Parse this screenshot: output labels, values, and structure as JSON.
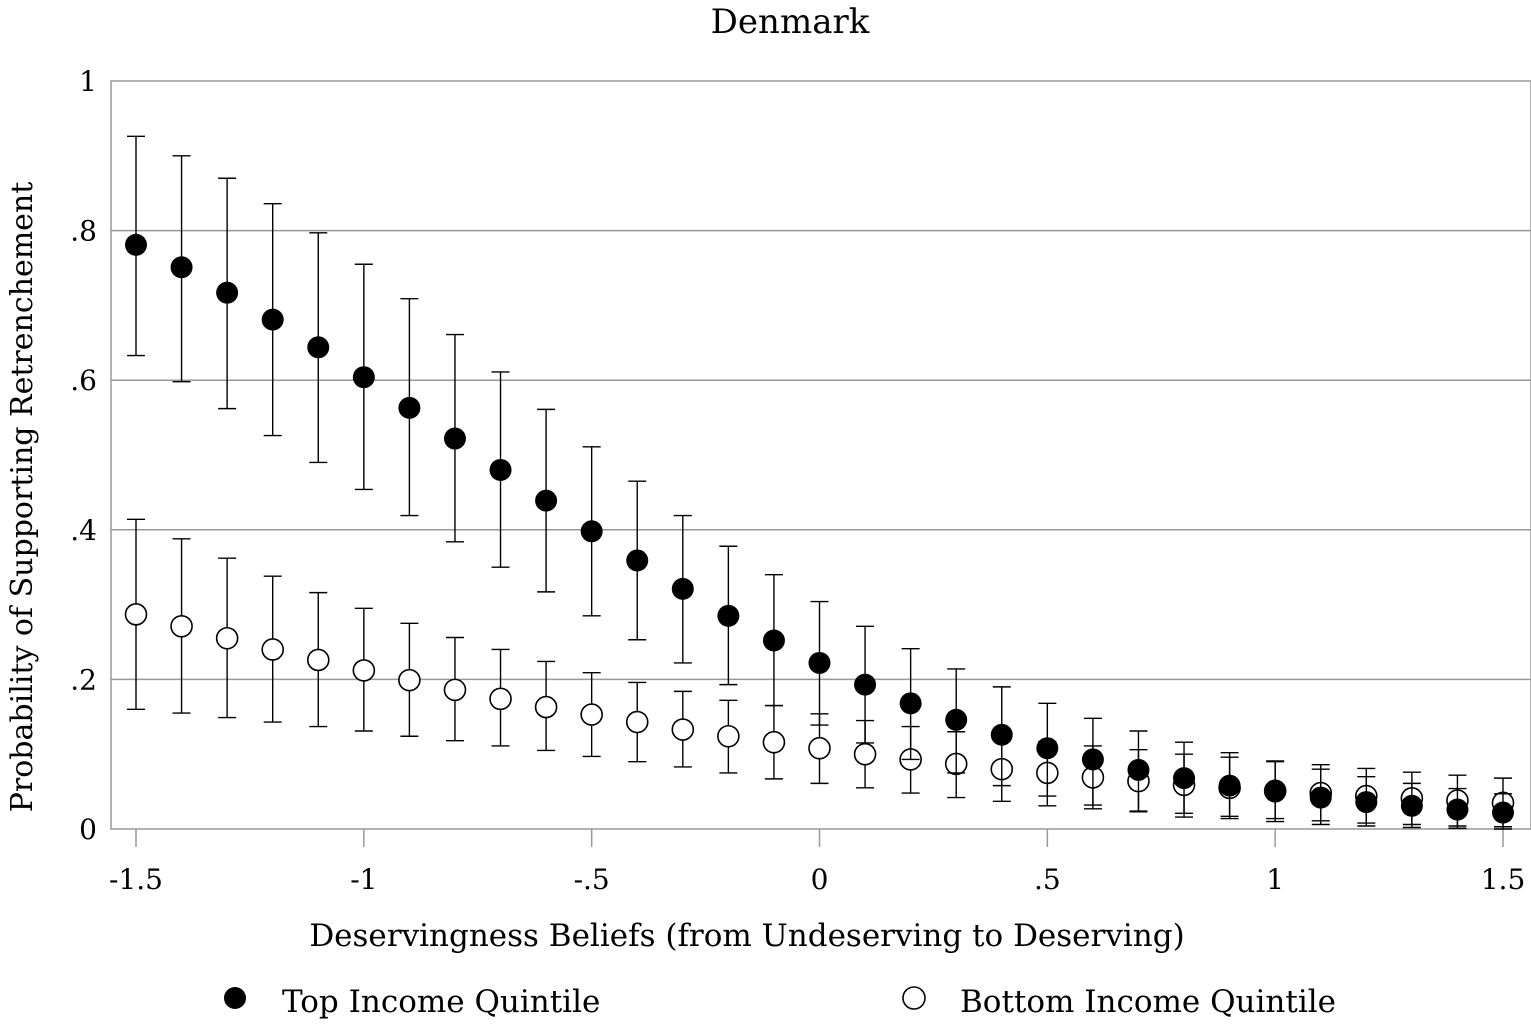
{
  "chart_data": {
    "type": "scatter",
    "title": "Denmark",
    "xlabel": "Deservingness Beliefs (from Undeserving to Deserving)",
    "ylabel": "Probability of Supporting Retrenchement",
    "xlim": [
      -1.55,
      1.55
    ],
    "ylim": [
      0,
      1
    ],
    "grid": true,
    "legend_position": "bottom",
    "x_ticks": [
      {
        "value": -1.5,
        "label": "-1.5"
      },
      {
        "value": -1,
        "label": "-1"
      },
      {
        "value": -0.5,
        "label": "-.5"
      },
      {
        "value": 0,
        "label": "0"
      },
      {
        "value": 0.5,
        "label": ".5"
      },
      {
        "value": 1,
        "label": "1"
      },
      {
        "value": 1.5,
        "label": "1.5"
      }
    ],
    "y_ticks": [
      {
        "value": 0,
        "label": "0"
      },
      {
        "value": 0.2,
        "label": ".2"
      },
      {
        "value": 0.4,
        "label": ".4"
      },
      {
        "value": 0.6,
        "label": ".6"
      },
      {
        "value": 0.8,
        "label": ".8"
      },
      {
        "value": 1,
        "label": "1"
      }
    ],
    "x": [
      -1.5,
      -1.4,
      -1.3,
      -1.2,
      -1.1,
      -1.0,
      -0.9,
      -0.8,
      -0.7,
      -0.6,
      -0.5,
      -0.4,
      -0.3,
      -0.2,
      -0.1,
      0.0,
      0.1,
      0.2,
      0.3,
      0.4,
      0.5,
      0.6,
      0.7,
      0.8,
      0.9,
      1.0,
      1.1,
      1.2,
      1.3,
      1.4,
      1.5
    ],
    "series": [
      {
        "name": "Top Income Quintile",
        "marker": "filled-circle",
        "values": [
          0.781,
          0.751,
          0.717,
          0.681,
          0.644,
          0.604,
          0.563,
          0.522,
          0.48,
          0.439,
          0.398,
          0.359,
          0.321,
          0.285,
          0.252,
          0.222,
          0.193,
          0.168,
          0.146,
          0.126,
          0.108,
          0.093,
          0.079,
          0.068,
          0.058,
          0.05,
          0.042,
          0.036,
          0.031,
          0.026,
          0.022
        ],
        "lower": [
          0.633,
          0.598,
          0.562,
          0.526,
          0.49,
          0.454,
          0.419,
          0.384,
          0.35,
          0.317,
          0.285,
          0.253,
          0.222,
          0.193,
          0.165,
          0.139,
          0.115,
          0.093,
          0.075,
          0.058,
          0.044,
          0.032,
          0.023,
          0.016,
          0.014,
          0.01,
          0.006,
          0.004,
          0.002,
          0.001,
          0.0
        ],
        "upper": [
          0.926,
          0.9,
          0.87,
          0.836,
          0.797,
          0.755,
          0.709,
          0.661,
          0.611,
          0.561,
          0.511,
          0.465,
          0.419,
          0.378,
          0.34,
          0.304,
          0.271,
          0.241,
          0.214,
          0.19,
          0.168,
          0.148,
          0.131,
          0.116,
          0.102,
          0.09,
          0.08,
          0.07,
          0.061,
          0.054,
          0.047
        ]
      },
      {
        "name": "Bottom Income Quintile",
        "marker": "hollow-circle",
        "values": [
          0.287,
          0.271,
          0.255,
          0.24,
          0.226,
          0.212,
          0.199,
          0.186,
          0.174,
          0.163,
          0.153,
          0.143,
          0.133,
          0.124,
          0.116,
          0.108,
          0.1,
          0.093,
          0.087,
          0.08,
          0.075,
          0.069,
          0.064,
          0.059,
          0.055,
          0.051,
          0.048,
          0.044,
          0.041,
          0.038,
          0.035
        ],
        "lower": [
          0.16,
          0.155,
          0.149,
          0.143,
          0.137,
          0.131,
          0.124,
          0.118,
          0.111,
          0.105,
          0.097,
          0.09,
          0.083,
          0.075,
          0.067,
          0.061,
          0.055,
          0.048,
          0.042,
          0.037,
          0.031,
          0.027,
          0.024,
          0.021,
          0.017,
          0.014,
          0.011,
          0.008,
          0.006,
          0.004,
          0.003
        ],
        "upper": [
          0.414,
          0.388,
          0.362,
          0.338,
          0.316,
          0.295,
          0.275,
          0.256,
          0.24,
          0.224,
          0.209,
          0.196,
          0.184,
          0.172,
          0.165,
          0.154,
          0.145,
          0.137,
          0.13,
          0.123,
          0.117,
          0.111,
          0.106,
          0.1,
          0.096,
          0.091,
          0.086,
          0.081,
          0.076,
          0.072,
          0.068
        ]
      }
    ]
  }
}
